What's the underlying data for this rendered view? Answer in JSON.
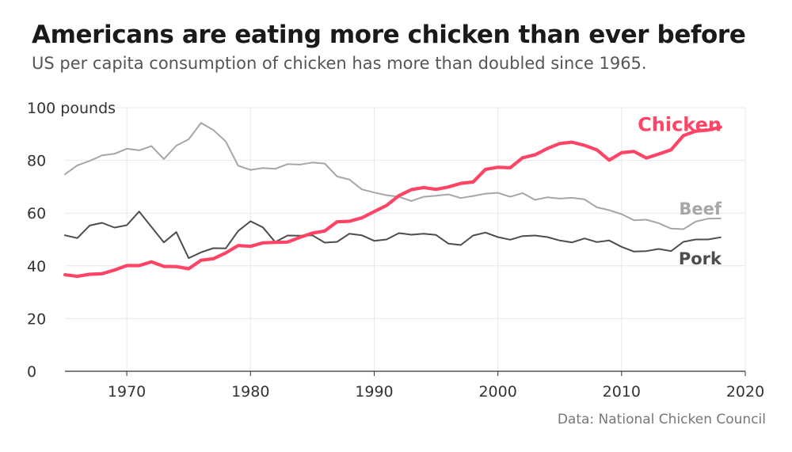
{
  "title": "Americans are eating more chicken than ever before",
  "subtitle": "US per capita consumption of chicken has more than doubled since 1965.",
  "source": "Data: National Chicken Council",
  "colors": {
    "chicken": "#ff4466",
    "beef": "#a6a6a6",
    "pork": "#4d4d4d",
    "grid": "#e8e8e8",
    "axis": "#333333",
    "tick_text": "#333333"
  },
  "chart_data": {
    "type": "line",
    "title": "Americans are eating more chicken than ever before",
    "subtitle": "US per capita consumption of chicken has more than doubled since 1965.",
    "xlim": [
      1965,
      2020
    ],
    "ylim": [
      0,
      100
    ],
    "x_ticks": [
      1970,
      1980,
      1990,
      2000,
      2010,
      2020
    ],
    "y_ticks": [
      0,
      20,
      40,
      60,
      80,
      100
    ],
    "y_unit_label": "100 pounds",
    "grid": true,
    "legend": "inline labels at line ends",
    "x": [
      1965,
      1966,
      1967,
      1968,
      1969,
      1970,
      1971,
      1972,
      1973,
      1974,
      1975,
      1976,
      1977,
      1978,
      1979,
      1980,
      1981,
      1982,
      1983,
      1984,
      1985,
      1986,
      1987,
      1988,
      1989,
      1990,
      1991,
      1992,
      1993,
      1994,
      1995,
      1996,
      1997,
      1998,
      1999,
      2000,
      2001,
      2002,
      2003,
      2004,
      2005,
      2006,
      2007,
      2008,
      2009,
      2010,
      2011,
      2012,
      2013,
      2014,
      2015,
      2016,
      2017,
      2018
    ],
    "series": [
      {
        "name": "Beef",
        "color": "#a6a6a6",
        "values": [
          74.7,
          78.1,
          79.8,
          81.9,
          82.5,
          84.4,
          83.8,
          85.4,
          80.5,
          85.6,
          88.0,
          94.2,
          91.5,
          87.2,
          78.0,
          76.4,
          77.1,
          76.8,
          78.6,
          78.4,
          79.2,
          78.8,
          73.9,
          72.7,
          69.0,
          67.8,
          66.8,
          66.2,
          64.6,
          66.2,
          66.6,
          67.1,
          65.7,
          66.5,
          67.4,
          67.7,
          66.2,
          67.6,
          65.0,
          66.0,
          65.5,
          65.8,
          65.2,
          62.2,
          61.1,
          59.6,
          57.3,
          57.5,
          56.2,
          54.1,
          53.9,
          56.8,
          57.9,
          58.0
        ]
      },
      {
        "name": "Pork",
        "color": "#4d4d4d",
        "values": [
          51.6,
          50.5,
          55.3,
          56.3,
          54.5,
          55.4,
          60.6,
          54.7,
          48.9,
          52.8,
          42.9,
          45.1,
          46.7,
          46.6,
          53.2,
          56.9,
          54.6,
          49.0,
          51.5,
          51.4,
          51.6,
          48.8,
          49.1,
          52.2,
          51.6,
          49.5,
          50.0,
          52.4,
          51.8,
          52.2,
          51.7,
          48.4,
          47.9,
          51.5,
          52.6,
          50.9,
          49.9,
          51.3,
          51.5,
          50.9,
          49.6,
          48.9,
          50.4,
          49.0,
          49.6,
          47.2,
          45.4,
          45.6,
          46.4,
          45.6,
          49.1,
          50.0,
          50.0,
          50.8
        ]
      },
      {
        "name": "Chicken",
        "color": "#ff4466",
        "values": [
          36.6,
          36.0,
          36.8,
          37.0,
          38.4,
          40.1,
          40.1,
          41.5,
          39.8,
          39.7,
          38.9,
          42.1,
          42.7,
          44.9,
          47.7,
          47.4,
          48.7,
          48.9,
          49.0,
          50.8,
          52.4,
          53.2,
          56.7,
          56.9,
          58.2,
          60.6,
          62.9,
          66.6,
          68.9,
          69.7,
          69.0,
          69.9,
          71.3,
          71.8,
          76.6,
          77.4,
          77.2,
          81.0,
          82.1,
          84.5,
          86.4,
          86.9,
          85.7,
          84.0,
          80.1,
          82.9,
          83.4,
          80.9,
          82.4,
          84.0,
          89.4,
          91.1,
          91.5,
          92.6
        ]
      }
    ]
  }
}
